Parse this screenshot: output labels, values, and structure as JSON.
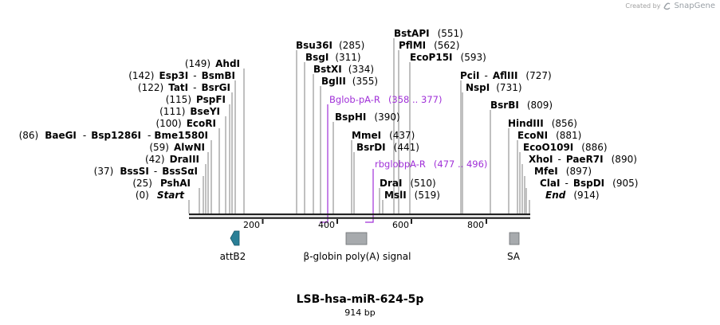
{
  "credit": {
    "created_by": "Created by",
    "brand": "SnapGene"
  },
  "map": {
    "title": "LSB-hsa-miR-624-5p",
    "length_label": "914 bp",
    "length_bp": 914,
    "ticks": [
      "200",
      "400",
      "600",
      "800"
    ],
    "enzymes_left": [
      {
        "name": "AhdI",
        "pos": "(149)"
      },
      {
        "name": "Esp3I",
        "sep": "-",
        "name2": "BsmBI",
        "pos": "(142)"
      },
      {
        "name": "TatI",
        "sep": "-",
        "name2": "BsrGI",
        "pos": "(122)"
      },
      {
        "name": "PspFI",
        "pos": "(115)"
      },
      {
        "name": "BseYI",
        "pos": "(111)"
      },
      {
        "name": "EcoRI",
        "pos": "(100)"
      },
      {
        "name": "BaeGI",
        "sep": "-",
        "name2": "Bsp1286I",
        "sep2": "-",
        "name3": "Bme1580I",
        "pos": "(86)"
      },
      {
        "name": "AlwNI",
        "pos": "(59)"
      },
      {
        "name": "DraIII",
        "pos": "(42)"
      },
      {
        "name": "BssSI",
        "sep": "-",
        "name2": "BssSαI",
        "pos": "(37)"
      },
      {
        "name": "PshAI",
        "pos": "(25)"
      },
      {
        "name": "Start",
        "pos": "(0)"
      }
    ],
    "enzymes_mid": [
      {
        "name": "Bsu36I",
        "pos": "(285)"
      },
      {
        "name": "BsgI",
        "pos": "(311)"
      },
      {
        "name": "BstXI",
        "pos": "(334)"
      },
      {
        "name": "BglII",
        "pos": "(355)"
      },
      {
        "name": "BspHI",
        "pos": "(390)"
      },
      {
        "name": "MmeI",
        "pos": "(437)"
      },
      {
        "name": "BsrDI",
        "pos": "(441)"
      },
      {
        "name": "DraI",
        "pos": "(510)"
      },
      {
        "name": "MslI",
        "pos": "(519)"
      },
      {
        "name": "BstAPI",
        "pos": "(551)"
      },
      {
        "name": "PflMI",
        "pos": "(562)"
      },
      {
        "name": "EcoP15I",
        "pos": "(593)"
      }
    ],
    "enzymes_right": [
      {
        "name": "PciI",
        "sep": "-",
        "name2": "AflIII",
        "pos": "(727)"
      },
      {
        "name": "NspI",
        "pos": "(731)"
      },
      {
        "name": "BsrBI",
        "pos": "(809)"
      },
      {
        "name": "HindIII",
        "pos": "(856)"
      },
      {
        "name": "EcoNI",
        "pos": "(881)"
      },
      {
        "name": "EcoO109I",
        "pos": "(886)"
      },
      {
        "name": "XhoI",
        "sep": "-",
        "name2": "PaeR7I",
        "pos": "(890)"
      },
      {
        "name": "MfeI",
        "pos": "(897)"
      },
      {
        "name": "ClaI",
        "sep": "-",
        "name2": "BspDI",
        "pos": "(905)"
      },
      {
        "name": "End",
        "pos": "(914)"
      }
    ],
    "primers": [
      {
        "name": "Bglob-pA-R",
        "range": "(358 .. 377)"
      },
      {
        "name": "rbglobpA-R",
        "range": "(477 .. 496)"
      }
    ],
    "features": [
      {
        "name": "attB2",
        "color": "#2a7f96"
      },
      {
        "name": "β-globin poly(A) signal",
        "color": "#a7aaad"
      },
      {
        "name": "SA",
        "color": "#a7aaad"
      }
    ],
    "colors": {
      "primer": "#a030d8",
      "backbone": "#222222",
      "site_line": "#808080"
    }
  }
}
